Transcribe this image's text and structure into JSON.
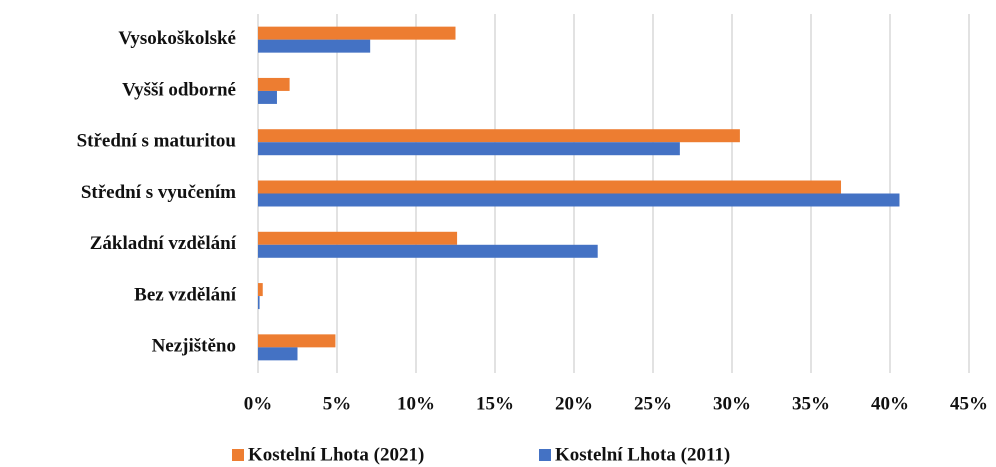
{
  "chart_data": {
    "type": "barh",
    "categories": [
      "Vysokoškolské",
      "Vyšší odborné",
      "Střední s maturitou",
      "Střední s vyučením",
      "Základní vzdělání",
      "Bez vzdělání",
      "Nezjištěno"
    ],
    "series": [
      {
        "name": "Kostelní Lhota (2021)",
        "color": "#ed7d31",
        "values": [
          12.5,
          2.0,
          30.5,
          36.9,
          12.6,
          0.3,
          4.9
        ]
      },
      {
        "name": "Kostelní Lhota (2011)",
        "color": "#4472c4",
        "values": [
          7.1,
          1.2,
          26.7,
          40.6,
          21.5,
          0.1,
          2.5
        ]
      }
    ],
    "xlim": [
      0,
      45
    ],
    "xticks": [
      {
        "value": 0,
        "label": "0%"
      },
      {
        "value": 5,
        "label": "5%"
      },
      {
        "value": 10,
        "label": "10%"
      },
      {
        "value": 15,
        "label": "15%"
      },
      {
        "value": 20,
        "label": "20%"
      },
      {
        "value": 25,
        "label": "25%"
      },
      {
        "value": 30,
        "label": "30%"
      },
      {
        "value": 35,
        "label": "35%"
      },
      {
        "value": 40,
        "label": "40%"
      },
      {
        "value": 45,
        "label": "45%"
      }
    ],
    "grid": true,
    "legend": "bottom"
  }
}
